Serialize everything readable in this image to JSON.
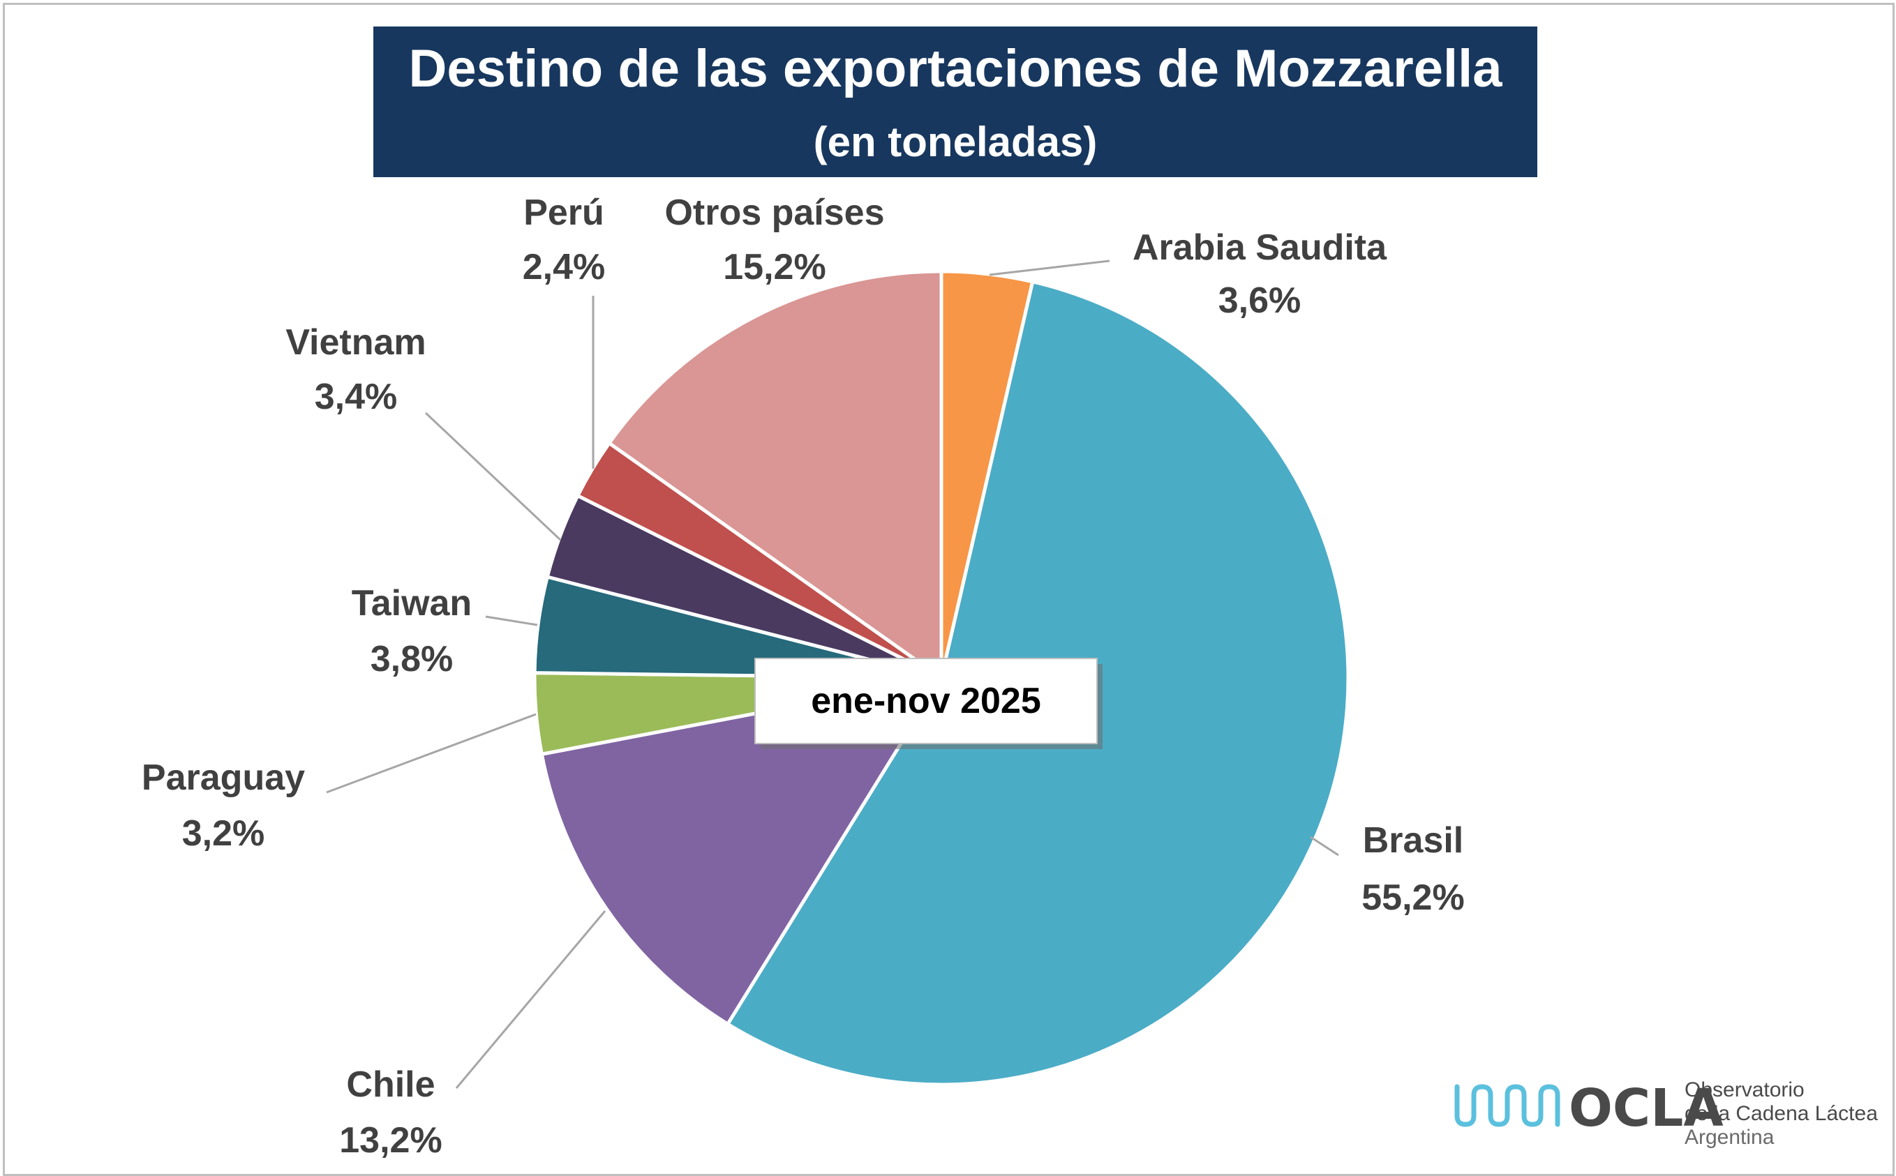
{
  "chart_data": {
    "type": "pie",
    "title": "Destino de las exportaciones de Mozzarella",
    "subtitle": "(en toneladas)",
    "period_label": "ene-nov 2025",
    "slices": [
      {
        "name": "Arabia Saudita",
        "value": 3.6,
        "label": "3,6%",
        "color": "#f79646"
      },
      {
        "name": "Brasil",
        "value": 55.2,
        "label": "55,2%",
        "color": "#4bacc6"
      },
      {
        "name": "Chile",
        "value": 13.2,
        "label": "13,2%",
        "color": "#8064a2"
      },
      {
        "name": "Paraguay",
        "value": 3.2,
        "label": "3,2%",
        "color": "#9bbb59"
      },
      {
        "name": "Taiwan",
        "value": 3.8,
        "label": "3,8%",
        "color": "#266a7c"
      },
      {
        "name": "Vietnam",
        "value": 3.4,
        "label": "3,4%",
        "color": "#4a3a60"
      },
      {
        "name": "Perú",
        "value": 2.4,
        "label": "2,4%",
        "color": "#c0504d"
      },
      {
        "name": "Otros países",
        "value": 15.2,
        "label": "15,2%",
        "color": "#d99694"
      }
    ]
  },
  "colors": {
    "title_background": "#17375e",
    "label_text": "#404040",
    "leader_line": "#a6a6a6",
    "logo_waves": "#5bc0de"
  },
  "logo": {
    "name": "OCLA",
    "line1": "Observatorio",
    "line2": "de la Cadena Láctea",
    "line3": "Argentina"
  }
}
